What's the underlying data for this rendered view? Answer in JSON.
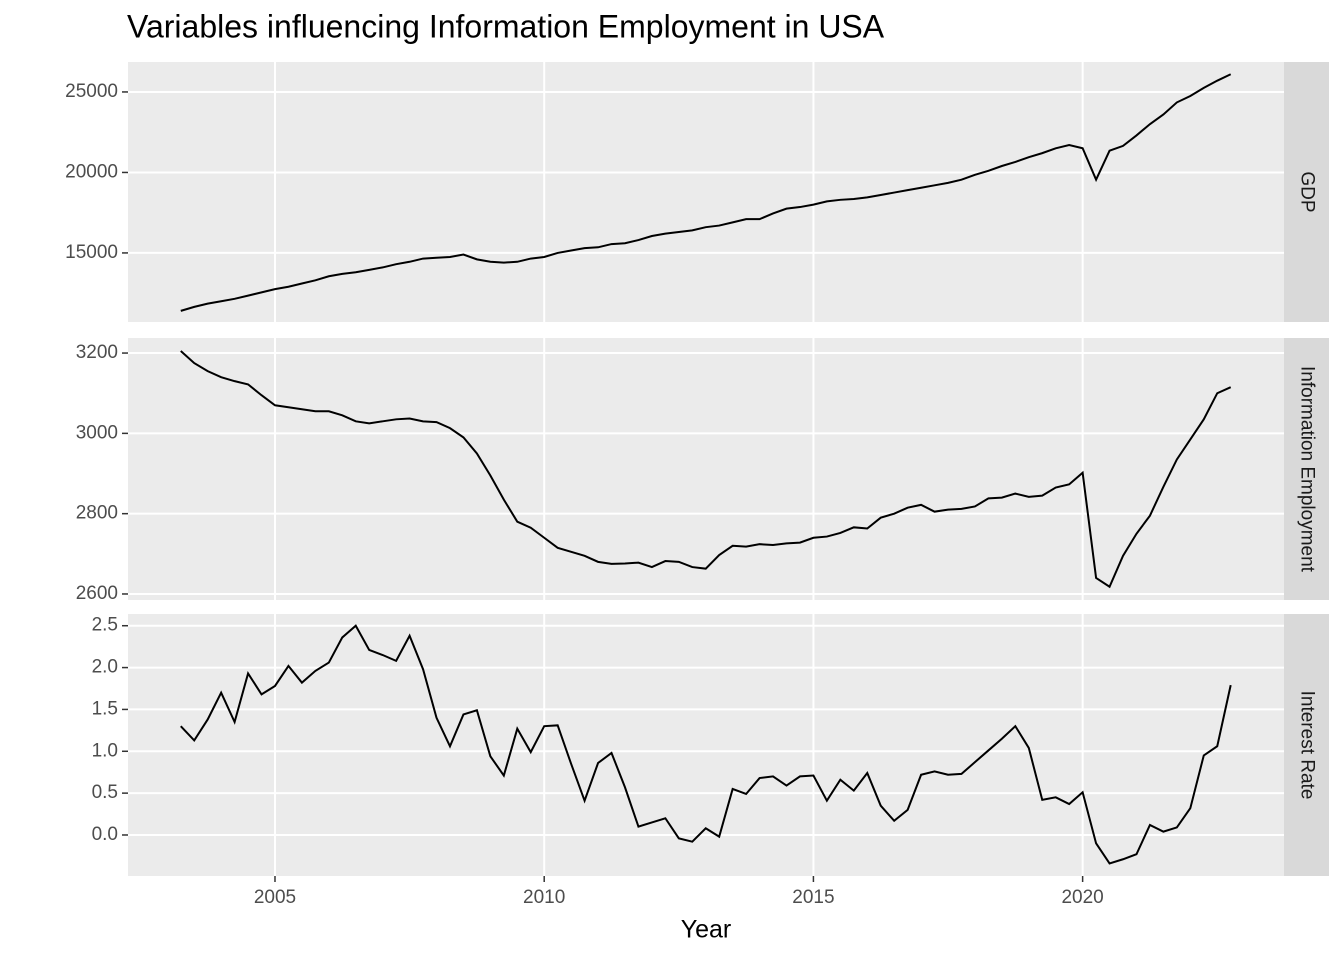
{
  "chart_data": {
    "type": "line",
    "title": "Variables influencing Information Employment in USA",
    "x_label": "Year",
    "color": "#000000",
    "grid": true,
    "xlim": [
      2002.27,
      2023.74
    ],
    "xticks": [
      2005,
      2010,
      2015,
      2020
    ],
    "x": [
      2003.25,
      2003.5,
      2003.75,
      2004,
      2004.25,
      2004.5,
      2004.75,
      2005,
      2005.25,
      2005.5,
      2005.75,
      2006,
      2006.25,
      2006.5,
      2006.75,
      2007,
      2007.25,
      2007.5,
      2007.75,
      2008,
      2008.25,
      2008.5,
      2008.75,
      2009,
      2009.25,
      2009.5,
      2009.75,
      2010,
      2010.25,
      2010.5,
      2010.75,
      2011,
      2011.25,
      2011.5,
      2011.75,
      2012,
      2012.25,
      2012.5,
      2012.75,
      2013,
      2013.25,
      2013.5,
      2013.75,
      2014,
      2014.25,
      2014.5,
      2014.75,
      2015,
      2015.25,
      2015.5,
      2015.75,
      2016,
      2016.25,
      2016.5,
      2016.75,
      2017,
      2017.25,
      2017.5,
      2017.75,
      2018,
      2018.25,
      2018.5,
      2018.75,
      2019,
      2019.25,
      2019.5,
      2019.75,
      2020,
      2020.25,
      2020.5,
      2020.75,
      2021,
      2021.25,
      2021.5,
      2021.75,
      2022,
      2022.25,
      2022.5,
      2022.75
    ],
    "facets": [
      {
        "name": "GDP",
        "ylim": [
          10710,
          26860
        ],
        "yticks": [
          15000,
          20000,
          25000
        ],
        "values": [
          11400,
          11650,
          11850,
          12000,
          12150,
          12350,
          12550,
          12750,
          12900,
          13100,
          13300,
          13550,
          13700,
          13800,
          13950,
          14100,
          14300,
          14450,
          14650,
          14700,
          14750,
          14900,
          14600,
          14450,
          14400,
          14450,
          14650,
          14750,
          15000,
          15150,
          15300,
          15350,
          15550,
          15600,
          15800,
          16050,
          16200,
          16300,
          16400,
          16600,
          16700,
          16900,
          17100,
          17100,
          17450,
          17750,
          17850,
          18000,
          18200,
          18300,
          18350,
          18450,
          18600,
          18750,
          18900,
          19050,
          19200,
          19350,
          19550,
          19850,
          20100,
          20400,
          20650,
          20950,
          21200,
          21500,
          21700,
          21500,
          19550,
          21350,
          21650,
          22300,
          23000,
          23600,
          24350,
          24750,
          25250,
          25700,
          26100
        ]
      },
      {
        "name": "Information Employment",
        "ylim": [
          2585,
          3237.5
        ],
        "yticks": [
          2600,
          2800,
          3000,
          3200
        ],
        "values": [
          3205,
          3175,
          3155,
          3140,
          3130,
          3122,
          3095,
          3070,
          3065,
          3060,
          3055,
          3055,
          3045,
          3030,
          3025,
          3030,
          3035,
          3037,
          3030,
          3028,
          3013,
          2990,
          2950,
          2895,
          2835,
          2780,
          2765,
          2740,
          2715,
          2705,
          2695,
          2680,
          2675,
          2676,
          2678,
          2667,
          2682,
          2680,
          2667,
          2663,
          2697,
          2720,
          2718,
          2724,
          2722,
          2726,
          2728,
          2740,
          2743,
          2752,
          2766,
          2763,
          2790,
          2800,
          2815,
          2822,
          2805,
          2810,
          2812,
          2818,
          2838,
          2840,
          2850,
          2842,
          2845,
          2865,
          2873,
          2902,
          2640,
          2618,
          2695,
          2750,
          2795,
          2867,
          2935,
          2985,
          3035,
          3100,
          3115
        ]
      },
      {
        "name": "Interest Rate",
        "ylim": [
          -0.49,
          2.64
        ],
        "yticks": [
          {
            "value": 0,
            "label": "0.0"
          },
          0.5,
          {
            "value": 1,
            "label": "1.0"
          },
          1.5,
          {
            "value": 2,
            "label": "2.0"
          },
          2.5
        ],
        "values": [
          1.3,
          1.13,
          1.38,
          1.7,
          1.35,
          1.93,
          1.68,
          1.78,
          2.02,
          1.82,
          1.96,
          2.06,
          2.36,
          2.5,
          2.21,
          2.15,
          2.08,
          2.38,
          1.98,
          1.4,
          1.06,
          1.44,
          1.49,
          0.94,
          0.71,
          1.27,
          0.99,
          1.3,
          1.31,
          0.85,
          0.41,
          0.86,
          0.98,
          0.57,
          0.1,
          0.15,
          0.2,
          -0.04,
          -0.08,
          0.08,
          -0.02,
          0.55,
          0.49,
          0.68,
          0.7,
          0.59,
          0.7,
          0.71,
          0.41,
          0.66,
          0.53,
          0.74,
          0.35,
          0.17,
          0.3,
          0.72,
          0.76,
          0.72,
          0.73,
          0.87,
          1.01,
          1.15,
          1.3,
          1.04,
          0.42,
          0.45,
          0.37,
          0.51,
          -0.1,
          -0.34,
          -0.29,
          -0.23,
          0.12,
          0.04,
          0.09,
          0.32,
          0.95,
          1.06,
          1.79
        ]
      }
    ]
  }
}
